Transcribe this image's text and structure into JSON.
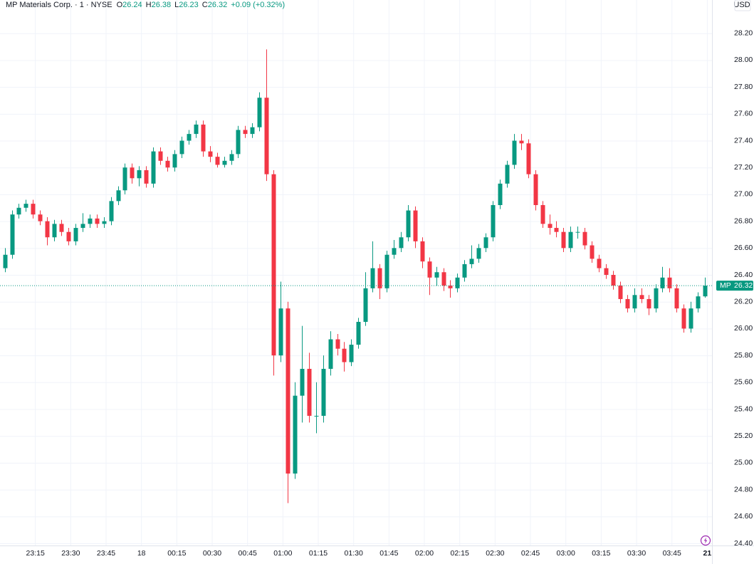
{
  "chart_data": {
    "type": "candlestick",
    "header": {
      "symbol": "MP Materials Corp. · 1 · NYSE",
      "ohlc": [
        {
          "key": "O",
          "value": 26.24
        },
        {
          "key": "H",
          "value": 26.38
        },
        {
          "key": "L",
          "value": 26.23
        },
        {
          "key": "C",
          "value": 26.32
        }
      ],
      "change": "+0.09 (+0.32%)"
    },
    "currency": "USD",
    "ticker": "MP",
    "last_price": 26.32,
    "up_color": "#089981",
    "down_color": "#f23645",
    "grid": true,
    "xlim": [
      0,
      302
    ],
    "xticks": [
      {
        "value": 15,
        "label": "23:15"
      },
      {
        "value": 30,
        "label": "23:30"
      },
      {
        "value": 45,
        "label": "23:45"
      },
      {
        "value": 60,
        "label": "18"
      },
      {
        "value": 75,
        "label": "00:15"
      },
      {
        "value": 90,
        "label": "00:30"
      },
      {
        "value": 105,
        "label": "00:45"
      },
      {
        "value": 120,
        "label": "01:00"
      },
      {
        "value": 135,
        "label": "01:15"
      },
      {
        "value": 150,
        "label": "01:30"
      },
      {
        "value": 165,
        "label": "01:45"
      },
      {
        "value": 180,
        "label": "02:00"
      },
      {
        "value": 195,
        "label": "02:15"
      },
      {
        "value": 210,
        "label": "02:30"
      },
      {
        "value": 225,
        "label": "02:45"
      },
      {
        "value": 240,
        "label": "03:00"
      },
      {
        "value": 255,
        "label": "03:15"
      },
      {
        "value": 270,
        "label": "03:30"
      },
      {
        "value": 285,
        "label": "03:45"
      },
      {
        "value": 300,
        "label": "21"
      }
    ],
    "ylim": [
      24.384,
      28.448
    ],
    "yticks": [
      {
        "value": 24.4,
        "label": "24.40"
      },
      {
        "value": 24.6,
        "label": "24.60"
      },
      {
        "value": 24.8,
        "label": "24.80"
      },
      {
        "value": 25.0,
        "label": "25.00"
      },
      {
        "value": 25.2,
        "label": "25.20"
      },
      {
        "value": 25.4,
        "label": "25.40"
      },
      {
        "value": 25.6,
        "label": "25.60"
      },
      {
        "value": 25.8,
        "label": "25.80"
      },
      {
        "value": 26.0,
        "label": "26.00"
      },
      {
        "value": 26.2,
        "label": "26.20"
      },
      {
        "value": 26.4,
        "label": "26.40"
      },
      {
        "value": 26.6,
        "label": "26.60"
      },
      {
        "value": 26.8,
        "label": "26.80"
      },
      {
        "value": 27.0,
        "label": "27.00"
      },
      {
        "value": 27.2,
        "label": "27.20"
      },
      {
        "value": 27.4,
        "label": "27.40"
      },
      {
        "value": 27.6,
        "label": "27.60"
      },
      {
        "value": 27.8,
        "label": "27.80"
      },
      {
        "value": 28.0,
        "label": "28.00"
      },
      {
        "value": 28.2,
        "label": "28.20"
      }
    ],
    "x": [
      2,
      5,
      8,
      11,
      14,
      17,
      20,
      23,
      26,
      29,
      32,
      35,
      38,
      41,
      44,
      47,
      50,
      53,
      56,
      59,
      62,
      65,
      68,
      71,
      74,
      77,
      80,
      83,
      86,
      89,
      92,
      95,
      98,
      101,
      104,
      107,
      110,
      113,
      116,
      119,
      122,
      125,
      128,
      131,
      134,
      137,
      140,
      143,
      146,
      149,
      152,
      155,
      158,
      161,
      164,
      167,
      170,
      173,
      176,
      179,
      182,
      185,
      188,
      191,
      194,
      197,
      200,
      203,
      206,
      209,
      212,
      215,
      218,
      221,
      224,
      227,
      230,
      233,
      236,
      239,
      242,
      245,
      248,
      251,
      254,
      257,
      260,
      263,
      266,
      269,
      272,
      275,
      278,
      281,
      284,
      287,
      290,
      293,
      296,
      299
    ],
    "candles": [
      [
        26.45,
        26.6,
        26.42,
        26.55
      ],
      [
        26.55,
        26.88,
        26.52,
        26.85
      ],
      [
        26.85,
        26.93,
        26.82,
        26.9
      ],
      [
        26.9,
        26.96,
        26.87,
        26.93
      ],
      [
        26.93,
        26.96,
        26.82,
        26.85
      ],
      [
        26.85,
        26.88,
        26.77,
        26.8
      ],
      [
        26.8,
        26.83,
        26.62,
        26.68
      ],
      [
        26.68,
        26.81,
        26.65,
        26.78
      ],
      [
        26.78,
        26.81,
        26.69,
        26.72
      ],
      [
        26.72,
        26.75,
        26.62,
        26.65
      ],
      [
        26.65,
        26.78,
        26.62,
        26.75
      ],
      [
        26.75,
        26.86,
        26.72,
        26.78
      ],
      [
        26.78,
        26.85,
        26.75,
        26.82
      ],
      [
        26.82,
        26.85,
        26.75,
        26.78
      ],
      [
        26.78,
        26.83,
        26.75,
        26.8
      ],
      [
        26.8,
        26.98,
        26.77,
        26.95
      ],
      [
        26.95,
        27.06,
        26.92,
        27.03
      ],
      [
        27.03,
        27.23,
        27.0,
        27.2
      ],
      [
        27.2,
        27.23,
        27.08,
        27.12
      ],
      [
        27.12,
        27.21,
        27.06,
        27.18
      ],
      [
        27.18,
        27.21,
        27.05,
        27.08
      ],
      [
        27.08,
        27.35,
        27.05,
        27.32
      ],
      [
        27.32,
        27.35,
        27.22,
        27.25
      ],
      [
        27.25,
        27.28,
        27.17,
        27.2
      ],
      [
        27.2,
        27.33,
        27.17,
        27.3
      ],
      [
        27.3,
        27.43,
        27.27,
        27.4
      ],
      [
        27.4,
        27.48,
        27.37,
        27.45
      ],
      [
        27.45,
        27.55,
        27.42,
        27.52
      ],
      [
        27.52,
        27.55,
        27.28,
        27.32
      ],
      [
        27.32,
        27.36,
        27.24,
        27.28
      ],
      [
        27.28,
        27.31,
        27.2,
        27.22
      ],
      [
        27.22,
        27.28,
        27.2,
        27.25
      ],
      [
        27.25,
        27.33,
        27.22,
        27.3
      ],
      [
        27.3,
        27.51,
        27.27,
        27.48
      ],
      [
        27.48,
        27.51,
        27.42,
        27.45
      ],
      [
        27.45,
        27.53,
        27.42,
        27.5
      ],
      [
        27.5,
        27.76,
        27.47,
        27.72
      ],
      [
        27.72,
        28.08,
        27.1,
        27.15
      ],
      [
        27.15,
        27.18,
        25.65,
        25.8
      ],
      [
        25.8,
        26.35,
        25.75,
        26.15
      ],
      [
        26.15,
        26.2,
        24.7,
        24.92
      ],
      [
        24.92,
        25.6,
        24.88,
        25.5
      ],
      [
        25.5,
        26.02,
        25.3,
        25.7
      ],
      [
        25.7,
        25.82,
        25.3,
        25.35
      ],
      [
        25.35,
        25.6,
        25.22,
        25.35
      ],
      [
        25.35,
        25.8,
        25.3,
        25.7
      ],
      [
        25.7,
        25.98,
        25.65,
        25.92
      ],
      [
        25.92,
        25.96,
        25.8,
        25.85
      ],
      [
        25.85,
        25.9,
        25.68,
        25.75
      ],
      [
        25.75,
        25.92,
        25.72,
        25.88
      ],
      [
        25.88,
        26.08,
        25.85,
        26.05
      ],
      [
        26.05,
        26.42,
        26.02,
        26.3
      ],
      [
        26.3,
        26.65,
        26.27,
        26.45
      ],
      [
        26.45,
        26.48,
        26.22,
        26.3
      ],
      [
        26.3,
        26.58,
        26.27,
        26.55
      ],
      [
        26.55,
        26.66,
        26.52,
        26.6
      ],
      [
        26.6,
        26.72,
        26.57,
        26.68
      ],
      [
        26.68,
        26.92,
        26.65,
        26.88
      ],
      [
        26.88,
        26.91,
        26.6,
        26.65
      ],
      [
        26.65,
        26.68,
        26.45,
        26.5
      ],
      [
        26.5,
        26.53,
        26.25,
        26.38
      ],
      [
        26.38,
        26.46,
        26.32,
        26.42
      ],
      [
        26.42,
        26.45,
        26.28,
        26.32
      ],
      [
        26.32,
        26.36,
        26.23,
        26.3
      ],
      [
        26.3,
        26.41,
        26.27,
        26.38
      ],
      [
        26.38,
        26.51,
        26.35,
        26.48
      ],
      [
        26.48,
        26.62,
        26.45,
        26.52
      ],
      [
        26.52,
        26.63,
        26.49,
        26.6
      ],
      [
        26.6,
        26.71,
        26.57,
        26.68
      ],
      [
        26.68,
        26.95,
        26.65,
        26.92
      ],
      [
        26.92,
        27.11,
        26.89,
        27.08
      ],
      [
        27.08,
        27.25,
        27.05,
        27.22
      ],
      [
        27.22,
        27.45,
        27.19,
        27.4
      ],
      [
        27.4,
        27.45,
        27.33,
        27.38
      ],
      [
        27.38,
        27.41,
        27.12,
        27.15
      ],
      [
        27.15,
        27.18,
        26.88,
        26.92
      ],
      [
        26.92,
        26.95,
        26.75,
        26.78
      ],
      [
        26.78,
        26.85,
        26.7,
        26.75
      ],
      [
        26.75,
        26.8,
        26.68,
        26.72
      ],
      [
        26.72,
        26.75,
        26.57,
        26.6
      ],
      [
        26.6,
        26.76,
        26.57,
        26.72
      ],
      [
        26.72,
        26.76,
        26.67,
        26.72
      ],
      [
        26.72,
        26.75,
        26.59,
        26.62
      ],
      [
        26.62,
        26.65,
        26.49,
        26.52
      ],
      [
        26.52,
        26.55,
        26.42,
        26.45
      ],
      [
        26.45,
        26.48,
        26.37,
        26.4
      ],
      [
        26.4,
        26.43,
        26.29,
        26.32
      ],
      [
        26.32,
        26.35,
        26.19,
        26.22
      ],
      [
        26.22,
        26.25,
        26.12,
        26.15
      ],
      [
        26.15,
        26.3,
        26.12,
        26.25
      ],
      [
        26.25,
        26.3,
        26.19,
        26.22
      ],
      [
        26.22,
        26.25,
        26.1,
        26.15
      ],
      [
        26.15,
        26.33,
        26.12,
        26.3
      ],
      [
        26.3,
        26.46,
        26.27,
        26.38
      ],
      [
        26.38,
        26.45,
        26.27,
        26.3
      ],
      [
        26.3,
        26.33,
        26.12,
        26.15
      ],
      [
        26.15,
        26.18,
        25.97,
        26.0
      ],
      [
        26.0,
        26.2,
        25.97,
        26.15
      ],
      [
        26.15,
        26.27,
        26.12,
        26.24
      ],
      [
        26.24,
        26.38,
        26.23,
        26.32
      ]
    ]
  }
}
